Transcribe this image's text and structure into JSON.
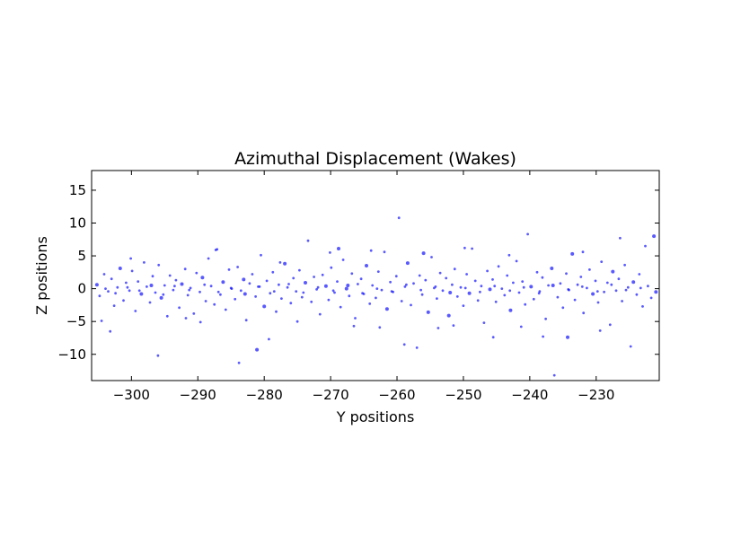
{
  "chart_data": {
    "type": "scatter",
    "title": "Azimuthal Displacement (Wakes)",
    "xlabel": "Y positions",
    "ylabel": "Z positions",
    "xlim": [
      -306,
      -220.5
    ],
    "ylim": [
      -14,
      18
    ],
    "xticks": [
      -300,
      -290,
      -280,
      -270,
      -260,
      -250,
      -240,
      -230
    ],
    "xtick_labels": [
      "−300",
      "−290",
      "−280",
      "−270",
      "−260",
      "−250",
      "−240",
      "−230"
    ],
    "yticks": [
      15,
      10,
      5,
      0,
      -5,
      -10
    ],
    "ytick_labels": [
      "15",
      "10",
      "5",
      "0",
      "−5",
      "−10"
    ],
    "grid": false,
    "marker_color": "#0000ff",
    "marker_opacity": 0.65,
    "points": [
      [
        -305.2,
        0.6
      ],
      [
        -304.8,
        -1.1
      ],
      [
        -304.1,
        2.2
      ],
      [
        -303.5,
        -0.4
      ],
      [
        -303.0,
        1.5
      ],
      [
        -302.6,
        -2.6
      ],
      [
        -302.1,
        0.2
      ],
      [
        -301.7,
        3.1
      ],
      [
        -301.2,
        -1.8
      ],
      [
        -300.8,
        0.9
      ],
      [
        -300.3,
        -0.3
      ],
      [
        -299.9,
        2.7
      ],
      [
        -299.4,
        -3.4
      ],
      [
        -299.0,
        1.1
      ],
      [
        -298.5,
        -0.8
      ],
      [
        -298.1,
        4.0
      ],
      [
        -297.7,
        0.3
      ],
      [
        -297.2,
        -2.1
      ],
      [
        -296.8,
        1.9
      ],
      [
        -296.4,
        -0.6
      ],
      [
        -295.9,
        3.6
      ],
      [
        -295.5,
        -1.4
      ],
      [
        -295.0,
        0.5
      ],
      [
        -294.6,
        -4.2
      ],
      [
        -294.2,
        2.0
      ],
      [
        -293.7,
        -0.2
      ],
      [
        -293.3,
        1.3
      ],
      [
        -292.8,
        -2.9
      ],
      [
        -292.4,
        0.7
      ],
      [
        -291.9,
        3.0
      ],
      [
        -291.5,
        -1.0
      ],
      [
        -291.1,
        0.1
      ],
      [
        -290.6,
        -3.8
      ],
      [
        -290.2,
        2.4
      ],
      [
        -289.7,
        -0.5
      ],
      [
        -289.3,
        1.7
      ],
      [
        -288.8,
        -1.9
      ],
      [
        -288.4,
        4.6
      ],
      [
        -288.0,
        0.4
      ],
      [
        -287.5,
        -2.4
      ],
      [
        -287.1,
        6.0
      ],
      [
        -286.6,
        -0.9
      ],
      [
        -286.2,
        1.0
      ],
      [
        -285.8,
        -3.2
      ],
      [
        -285.3,
        2.9
      ],
      [
        -284.9,
        0.0
      ],
      [
        -284.4,
        -1.6
      ],
      [
        -284.0,
        3.3
      ],
      [
        -283.5,
        -0.3
      ],
      [
        -283.1,
        1.4
      ],
      [
        -282.7,
        -4.8
      ],
      [
        -282.2,
        0.8
      ],
      [
        -281.8,
        2.2
      ],
      [
        -281.3,
        -1.2
      ],
      [
        -280.9,
        0.3
      ],
      [
        -280.5,
        5.1
      ],
      [
        -280.0,
        -2.7
      ],
      [
        -279.6,
        1.2
      ],
      [
        -279.1,
        -0.7
      ],
      [
        -278.7,
        2.5
      ],
      [
        -278.2,
        -3.5
      ],
      [
        -277.8,
        0.6
      ],
      [
        -277.4,
        -1.5
      ],
      [
        -276.9,
        3.8
      ],
      [
        -276.5,
        0.2
      ],
      [
        -276.0,
        -2.2
      ],
      [
        -275.6,
        1.6
      ],
      [
        -275.2,
        -0.4
      ],
      [
        -274.7,
        2.8
      ],
      [
        -274.3,
        -1.3
      ],
      [
        -273.8,
        0.9
      ],
      [
        -273.4,
        7.3
      ],
      [
        -272.9,
        -2.0
      ],
      [
        -272.5,
        1.8
      ],
      [
        -272.1,
        -0.1
      ],
      [
        -271.6,
        -3.9
      ],
      [
        -271.2,
        2.1
      ],
      [
        -270.7,
        0.4
      ],
      [
        -270.3,
        -1.7
      ],
      [
        -269.9,
        3.2
      ],
      [
        -269.4,
        -0.6
      ],
      [
        -269.0,
        1.1
      ],
      [
        -268.5,
        -2.8
      ],
      [
        -268.1,
        4.4
      ],
      [
        -267.6,
        0.0
      ],
      [
        -267.2,
        -1.1
      ],
      [
        -266.8,
        2.3
      ],
      [
        -266.3,
        -4.5
      ],
      [
        -265.9,
        0.7
      ],
      [
        -265.4,
        1.5
      ],
      [
        -265.0,
        -0.8
      ],
      [
        -264.6,
        3.5
      ],
      [
        -264.1,
        -2.3
      ],
      [
        -263.7,
        0.5
      ],
      [
        -263.2,
        -1.4
      ],
      [
        -262.8,
        2.6
      ],
      [
        -262.3,
        -0.2
      ],
      [
        -261.9,
        5.6
      ],
      [
        -261.5,
        -3.1
      ],
      [
        -261.0,
        1.0
      ],
      [
        -260.6,
        -0.5
      ],
      [
        -260.1,
        1.9
      ],
      [
        -259.7,
        10.8
      ],
      [
        -259.3,
        -1.9
      ],
      [
        -258.8,
        0.3
      ],
      [
        -258.4,
        3.9
      ],
      [
        -257.9,
        -2.5
      ],
      [
        -257.5,
        0.8
      ],
      [
        -257.0,
        -9.0
      ],
      [
        -256.6,
        2.0
      ],
      [
        -256.2,
        -0.9
      ],
      [
        -255.7,
        1.3
      ],
      [
        -255.3,
        -3.6
      ],
      [
        -254.8,
        4.8
      ],
      [
        -254.4,
        0.1
      ],
      [
        -254.0,
        -1.5
      ],
      [
        -253.5,
        2.4
      ],
      [
        -253.1,
        -0.3
      ],
      [
        -252.6,
        1.6
      ],
      [
        -252.2,
        -4.1
      ],
      [
        -251.7,
        0.6
      ],
      [
        -251.3,
        3.0
      ],
      [
        -250.9,
        -1.2
      ],
      [
        -250.4,
        0.2
      ],
      [
        -250.0,
        -2.6
      ],
      [
        -249.5,
        2.2
      ],
      [
        -249.1,
        -0.7
      ],
      [
        -248.7,
        6.1
      ],
      [
        -248.2,
        1.2
      ],
      [
        -247.8,
        -1.8
      ],
      [
        -247.3,
        0.4
      ],
      [
        -246.9,
        -5.2
      ],
      [
        -246.4,
        2.7
      ],
      [
        -246.0,
        -0.1
      ],
      [
        -245.6,
        1.4
      ],
      [
        -245.1,
        -2.0
      ],
      [
        -244.7,
        3.4
      ],
      [
        -244.2,
        0.0
      ],
      [
        -243.8,
        -1.0
      ],
      [
        -243.4,
        2.0
      ],
      [
        -242.9,
        -3.3
      ],
      [
        -242.5,
        0.9
      ],
      [
        -242.0,
        4.2
      ],
      [
        -241.6,
        -0.6
      ],
      [
        -241.1,
        1.1
      ],
      [
        -240.7,
        -2.4
      ],
      [
        -240.3,
        8.3
      ],
      [
        -239.8,
        0.3
      ],
      [
        -239.4,
        -1.6
      ],
      [
        -238.9,
        2.5
      ],
      [
        -238.5,
        -0.4
      ],
      [
        -238.1,
        1.7
      ],
      [
        -237.6,
        -4.6
      ],
      [
        -237.2,
        0.5
      ],
      [
        -236.7,
        3.1
      ],
      [
        -236.3,
        -13.2
      ],
      [
        -235.8,
        -1.3
      ],
      [
        -235.4,
        0.8
      ],
      [
        -235.0,
        -2.9
      ],
      [
        -234.5,
        2.3
      ],
      [
        -234.1,
        -0.2
      ],
      [
        -233.6,
        5.3
      ],
      [
        -233.2,
        -1.7
      ],
      [
        -232.8,
        0.6
      ],
      [
        -232.3,
        1.8
      ],
      [
        -231.9,
        -3.7
      ],
      [
        -231.4,
        0.1
      ],
      [
        -231.0,
        2.9
      ],
      [
        -230.5,
        -0.8
      ],
      [
        -230.1,
        1.2
      ],
      [
        -229.7,
        -2.1
      ],
      [
        -229.2,
        4.1
      ],
      [
        -228.8,
        -0.5
      ],
      [
        -228.3,
        0.9
      ],
      [
        -227.9,
        -5.5
      ],
      [
        -227.5,
        2.6
      ],
      [
        -227.0,
        -0.3
      ],
      [
        -226.6,
        1.5
      ],
      [
        -226.1,
        -1.9
      ],
      [
        -225.7,
        3.6
      ],
      [
        -225.2,
        0.2
      ],
      [
        -224.8,
        -8.8
      ],
      [
        -224.4,
        1.0
      ],
      [
        -223.9,
        -0.9
      ],
      [
        -223.5,
        2.2
      ],
      [
        -223.0,
        -2.7
      ],
      [
        -222.6,
        6.5
      ],
      [
        -222.2,
        0.4
      ],
      [
        -221.7,
        -1.4
      ],
      [
        -221.3,
        8.0
      ],
      [
        -304.5,
        -4.9
      ],
      [
        -300.1,
        4.6
      ],
      [
        -296.0,
        -10.2
      ],
      [
        -291.8,
        -4.5
      ],
      [
        -287.3,
        5.9
      ],
      [
        -283.8,
        -11.3
      ],
      [
        -281.1,
        -9.3
      ],
      [
        -279.3,
        -7.7
      ],
      [
        -277.6,
        4.0
      ],
      [
        -270.1,
        5.5
      ],
      [
        -266.5,
        -5.7
      ],
      [
        -262.6,
        -5.9
      ],
      [
        -258.9,
        -8.5
      ],
      [
        -256.0,
        5.4
      ],
      [
        -253.8,
        -6.0
      ],
      [
        -251.5,
        -5.6
      ],
      [
        -249.8,
        6.2
      ],
      [
        -245.5,
        -7.4
      ],
      [
        -241.3,
        -5.8
      ],
      [
        -238.0,
        -7.3
      ],
      [
        -234.3,
        -7.4
      ],
      [
        -232.0,
        5.6
      ],
      [
        -229.4,
        -6.4
      ],
      [
        -226.4,
        7.7
      ],
      [
        -303.2,
        -6.5
      ],
      [
        -289.6,
        -5.1
      ],
      [
        -275.0,
        -5.0
      ],
      [
        -268.8,
        6.1
      ],
      [
        -263.9,
        5.8
      ],
      [
        -243.1,
        5.1
      ],
      [
        -303.9,
        0.0
      ],
      [
        -302.4,
        -0.7
      ],
      [
        -300.6,
        0.2
      ],
      [
        -298.8,
        -0.3
      ],
      [
        -297.0,
        0.5
      ],
      [
        -295.2,
        -0.9
      ],
      [
        -293.5,
        0.4
      ],
      [
        -291.3,
        -0.2
      ],
      [
        -289.0,
        0.6
      ],
      [
        -286.9,
        -0.5
      ],
      [
        -285.0,
        0.1
      ],
      [
        -282.9,
        -0.8
      ],
      [
        -280.7,
        0.3
      ],
      [
        -278.5,
        -0.4
      ],
      [
        -276.3,
        0.7
      ],
      [
        -274.1,
        -0.6
      ],
      [
        -271.9,
        0.2
      ],
      [
        -269.6,
        -0.3
      ],
      [
        -267.4,
        0.5
      ],
      [
        -265.2,
        -0.7
      ],
      [
        -263.0,
        0.0
      ],
      [
        -260.8,
        -0.4
      ],
      [
        -258.6,
        0.6
      ],
      [
        -256.4,
        -0.2
      ],
      [
        -254.2,
        0.3
      ],
      [
        -252.0,
        -0.6
      ],
      [
        -249.7,
        0.1
      ],
      [
        -247.5,
        -0.5
      ],
      [
        -245.3,
        0.4
      ],
      [
        -243.0,
        -0.3
      ],
      [
        -240.9,
        0.2
      ],
      [
        -238.6,
        -0.7
      ],
      [
        -236.5,
        0.5
      ],
      [
        -234.2,
        -0.1
      ],
      [
        -232.1,
        0.3
      ],
      [
        -229.8,
        -0.4
      ],
      [
        -227.7,
        0.6
      ],
      [
        -225.5,
        -0.2
      ],
      [
        -223.3,
        0.1
      ],
      [
        -221.0,
        -0.5
      ]
    ]
  }
}
